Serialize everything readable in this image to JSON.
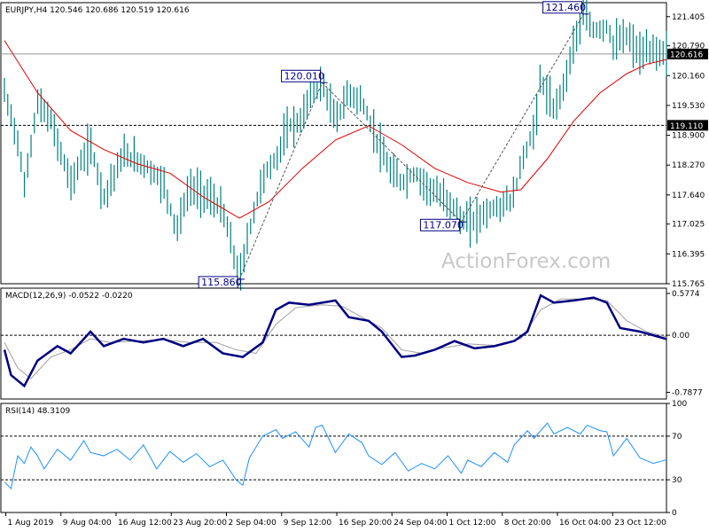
{
  "watermark": "ActionForex.com",
  "colors": {
    "candle": "#008080",
    "ma": "#dd0000",
    "macd": "#000080",
    "signal": "#a0a0a0",
    "rsi": "#1e90ff",
    "grid": "#000000",
    "price_tag_bg": "#000000"
  },
  "chart_data": [
    {
      "type": "line",
      "title": "EURJPY,H4  120.546 120.686 120.519 120.616",
      "x_ticks": [
        "1 Aug 2019",
        "9 Aug 04:00",
        "16 Aug 12:00",
        "23 Aug 20:00",
        "2 Sep 04:00",
        "9 Sep 12:00",
        "16 Sep 20:00",
        "24 Sep 04:00",
        "1 Oct 12:00",
        "8 Oct 20:00",
        "16 Oct 04:00",
        "23 Oct 12:00"
      ],
      "y_ticks": [
        115.765,
        116.395,
        117.025,
        117.64,
        118.27,
        118.9,
        119.53,
        120.16,
        120.79,
        121.405
      ],
      "ylim": [
        115.765,
        121.7
      ],
      "current_price": 120.616,
      "levels": [
        {
          "value": 120.616,
          "label": "120.616",
          "style": "solid"
        },
        {
          "value": 119.11,
          "label": "119.110",
          "style": "dashed"
        }
      ],
      "annotations": [
        {
          "x": 0.355,
          "value": 115.86,
          "label": "115.860"
        },
        {
          "x": 0.48,
          "value": 120.01,
          "label": "120.010"
        },
        {
          "x": 0.69,
          "value": 117.07,
          "label": "117.070"
        },
        {
          "x": 0.875,
          "value": 121.46,
          "label": "121.460"
        }
      ],
      "price_path": [
        [
          0,
          119.8
        ],
        [
          0.02,
          118.8
        ],
        [
          0.03,
          117.8
        ],
        [
          0.05,
          119.6
        ],
        [
          0.07,
          119.2
        ],
        [
          0.1,
          117.9
        ],
        [
          0.13,
          118.7
        ],
        [
          0.15,
          117.6
        ],
        [
          0.18,
          118.5
        ],
        [
          0.21,
          118.3
        ],
        [
          0.24,
          117.9
        ],
        [
          0.26,
          116.9
        ],
        [
          0.28,
          117.8
        ],
        [
          0.31,
          117.6
        ],
        [
          0.33,
          117.3
        ],
        [
          0.35,
          116.2
        ],
        [
          0.355,
          115.86
        ],
        [
          0.37,
          116.9
        ],
        [
          0.39,
          118.0
        ],
        [
          0.41,
          118.4
        ],
        [
          0.43,
          119.1
        ],
        [
          0.45,
          119.2
        ],
        [
          0.46,
          119.8
        ],
        [
          0.48,
          120.01
        ],
        [
          0.5,
          119.2
        ],
        [
          0.52,
          119.8
        ],
        [
          0.54,
          119.6
        ],
        [
          0.56,
          118.9
        ],
        [
          0.58,
          118.2
        ],
        [
          0.6,
          117.9
        ],
        [
          0.62,
          118.1
        ],
        [
          0.64,
          117.8
        ],
        [
          0.66,
          117.6
        ],
        [
          0.68,
          117.4
        ],
        [
          0.69,
          117.07
        ],
        [
          0.71,
          117.1
        ],
        [
          0.73,
          117.3
        ],
        [
          0.75,
          117.4
        ],
        [
          0.77,
          117.6
        ],
        [
          0.78,
          118.3
        ],
        [
          0.8,
          119.0
        ],
        [
          0.81,
          120.1
        ],
        [
          0.83,
          119.4
        ],
        [
          0.85,
          120.2
        ],
        [
          0.86,
          120.9
        ],
        [
          0.875,
          121.46
        ],
        [
          0.89,
          121.1
        ],
        [
          0.91,
          121.2
        ],
        [
          0.92,
          120.8
        ],
        [
          0.94,
          121.0
        ],
        [
          0.96,
          120.6
        ],
        [
          0.98,
          120.7
        ],
        [
          1.0,
          120.616
        ]
      ],
      "ma_path": [
        [
          0,
          120.9
        ],
        [
          0.05,
          119.8
        ],
        [
          0.1,
          119.0
        ],
        [
          0.15,
          118.6
        ],
        [
          0.2,
          118.3
        ],
        [
          0.25,
          118.1
        ],
        [
          0.3,
          117.6
        ],
        [
          0.355,
          117.15
        ],
        [
          0.4,
          117.5
        ],
        [
          0.45,
          118.2
        ],
        [
          0.5,
          118.8
        ],
        [
          0.55,
          119.1
        ],
        [
          0.6,
          118.7
        ],
        [
          0.65,
          118.2
        ],
        [
          0.7,
          117.9
        ],
        [
          0.75,
          117.7
        ],
        [
          0.78,
          117.75
        ],
        [
          0.82,
          118.4
        ],
        [
          0.86,
          119.2
        ],
        [
          0.9,
          119.8
        ],
        [
          0.94,
          120.2
        ],
        [
          0.97,
          120.4
        ],
        [
          1.0,
          120.5
        ]
      ]
    },
    {
      "type": "line",
      "title": "MACD(12,26,9) -0.0522 -0.0220",
      "y_ticks": [
        0.5774,
        0.0,
        -0.7877
      ],
      "ylim": [
        -0.88,
        0.65
      ],
      "zero_line": 0.0,
      "macd_path": [
        [
          0,
          -0.2
        ],
        [
          0.01,
          -0.55
        ],
        [
          0.03,
          -0.7
        ],
        [
          0.05,
          -0.35
        ],
        [
          0.08,
          -0.15
        ],
        [
          0.1,
          -0.25
        ],
        [
          0.13,
          0.05
        ],
        [
          0.15,
          -0.15
        ],
        [
          0.18,
          -0.05
        ],
        [
          0.21,
          -0.1
        ],
        [
          0.24,
          -0.05
        ],
        [
          0.27,
          -0.15
        ],
        [
          0.3,
          -0.05
        ],
        [
          0.33,
          -0.25
        ],
        [
          0.36,
          -0.3
        ],
        [
          0.39,
          -0.1
        ],
        [
          0.41,
          0.35
        ],
        [
          0.43,
          0.45
        ],
        [
          0.46,
          0.42
        ],
        [
          0.48,
          0.45
        ],
        [
          0.5,
          0.48
        ],
        [
          0.52,
          0.25
        ],
        [
          0.55,
          0.2
        ],
        [
          0.57,
          0.05
        ],
        [
          0.6,
          -0.3
        ],
        [
          0.62,
          -0.28
        ],
        [
          0.65,
          -0.2
        ],
        [
          0.68,
          -0.08
        ],
        [
          0.71,
          -0.18
        ],
        [
          0.74,
          -0.15
        ],
        [
          0.77,
          -0.08
        ],
        [
          0.79,
          0.05
        ],
        [
          0.81,
          0.55
        ],
        [
          0.83,
          0.45
        ],
        [
          0.86,
          0.48
        ],
        [
          0.89,
          0.52
        ],
        [
          0.91,
          0.45
        ],
        [
          0.93,
          0.1
        ],
        [
          0.96,
          0.05
        ],
        [
          1.0,
          -0.0522
        ]
      ],
      "signal_path": [
        [
          0,
          -0.1
        ],
        [
          0.02,
          -0.45
        ],
        [
          0.04,
          -0.6
        ],
        [
          0.07,
          -0.3
        ],
        [
          0.1,
          -0.2
        ],
        [
          0.13,
          -0.05
        ],
        [
          0.16,
          -0.1
        ],
        [
          0.2,
          -0.08
        ],
        [
          0.24,
          -0.06
        ],
        [
          0.28,
          -0.1
        ],
        [
          0.32,
          -0.1
        ],
        [
          0.35,
          -0.2
        ],
        [
          0.38,
          -0.25
        ],
        [
          0.41,
          0.15
        ],
        [
          0.44,
          0.38
        ],
        [
          0.48,
          0.42
        ],
        [
          0.51,
          0.4
        ],
        [
          0.54,
          0.25
        ],
        [
          0.57,
          0.1
        ],
        [
          0.6,
          -0.2
        ],
        [
          0.63,
          -0.25
        ],
        [
          0.66,
          -0.18
        ],
        [
          0.7,
          -0.12
        ],
        [
          0.74,
          -0.14
        ],
        [
          0.78,
          -0.05
        ],
        [
          0.81,
          0.35
        ],
        [
          0.84,
          0.5
        ],
        [
          0.88,
          0.5
        ],
        [
          0.91,
          0.48
        ],
        [
          0.94,
          0.2
        ],
        [
          0.97,
          0.05
        ],
        [
          1.0,
          -0.022
        ]
      ]
    },
    {
      "type": "line",
      "title": "RSI(14) 48.3109",
      "y_ticks": [
        100,
        70,
        30,
        0
      ],
      "ylim": [
        0,
        100
      ],
      "levels": [
        70,
        30
      ],
      "rsi_path": [
        [
          0,
          28
        ],
        [
          0.01,
          22
        ],
        [
          0.02,
          52
        ],
        [
          0.03,
          45
        ],
        [
          0.04,
          60
        ],
        [
          0.05,
          52
        ],
        [
          0.06,
          40
        ],
        [
          0.08,
          58
        ],
        [
          0.1,
          48
        ],
        [
          0.12,
          66
        ],
        [
          0.13,
          55
        ],
        [
          0.15,
          52
        ],
        [
          0.17,
          58
        ],
        [
          0.19,
          48
        ],
        [
          0.21,
          62
        ],
        [
          0.23,
          40
        ],
        [
          0.25,
          56
        ],
        [
          0.27,
          46
        ],
        [
          0.29,
          54
        ],
        [
          0.31,
          42
        ],
        [
          0.33,
          48
        ],
        [
          0.35,
          30
        ],
        [
          0.36,
          25
        ],
        [
          0.37,
          50
        ],
        [
          0.39,
          70
        ],
        [
          0.41,
          76
        ],
        [
          0.42,
          68
        ],
        [
          0.44,
          74
        ],
        [
          0.46,
          60
        ],
        [
          0.47,
          78
        ],
        [
          0.48,
          80
        ],
        [
          0.5,
          55
        ],
        [
          0.52,
          72
        ],
        [
          0.54,
          64
        ],
        [
          0.55,
          52
        ],
        [
          0.57,
          44
        ],
        [
          0.59,
          55
        ],
        [
          0.61,
          38
        ],
        [
          0.63,
          45
        ],
        [
          0.65,
          40
        ],
        [
          0.67,
          52
        ],
        [
          0.69,
          36
        ],
        [
          0.7,
          48
        ],
        [
          0.72,
          42
        ],
        [
          0.74,
          55
        ],
        [
          0.76,
          46
        ],
        [
          0.77,
          62
        ],
        [
          0.79,
          75
        ],
        [
          0.8,
          68
        ],
        [
          0.82,
          82
        ],
        [
          0.83,
          72
        ],
        [
          0.85,
          78
        ],
        [
          0.87,
          72
        ],
        [
          0.88,
          80
        ],
        [
          0.9,
          75
        ],
        [
          0.91,
          74
        ],
        [
          0.92,
          52
        ],
        [
          0.94,
          68
        ],
        [
          0.96,
          50
        ],
        [
          0.98,
          45
        ],
        [
          1.0,
          48.3109
        ]
      ]
    }
  ]
}
